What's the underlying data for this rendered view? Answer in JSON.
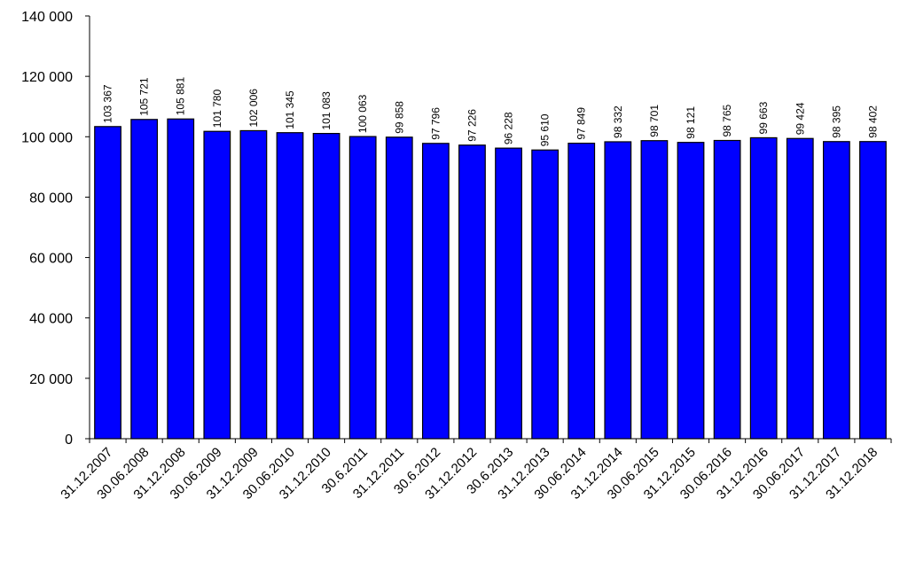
{
  "chart_data": {
    "type": "bar",
    "title": "",
    "xlabel": "",
    "ylabel": "",
    "ylim": [
      0,
      140000
    ],
    "yticks": [
      0,
      20000,
      40000,
      60000,
      80000,
      100000,
      120000,
      140000
    ],
    "ytick_labels": [
      "0",
      "20 000",
      "40 000",
      "60 000",
      "80 000",
      "100 000",
      "120 000",
      "140 000"
    ],
    "grid": false,
    "legend": "none",
    "bar_color": "#0000FF",
    "categories": [
      "31.12.2007",
      "30.06.2008",
      "31.12.2008",
      "30.06.2009",
      "31.12.2009",
      "30.06.2010",
      "31.12.2010",
      "30.6.2011",
      "31.12.2011",
      "30.6.2012",
      "31.12.2012",
      "30.6.2013",
      "31.12.2013",
      "30.06.2014",
      "31.12.2014",
      "30.06.2015",
      "31.12.2015",
      "30.06.2016",
      "31.12.2016",
      "30.06.2017",
      "31.12.2017",
      "31.12.2018"
    ],
    "values": [
      103367,
      105721,
      105881,
      101780,
      102006,
      101345,
      101083,
      100063,
      99858,
      97796,
      97226,
      96228,
      95610,
      97849,
      98332,
      98701,
      98121,
      98765,
      99663,
      99424,
      98395,
      98402
    ],
    "value_labels": [
      "103 367",
      "105 721",
      "105 881",
      "101 780",
      "102 006",
      "101 345",
      "101 083",
      "100 063",
      "99 858",
      "97 796",
      "97 226",
      "96 228",
      "95 610",
      "97 849",
      "98 332",
      "98 701",
      "98 121",
      "98 765",
      "99 663",
      "99 424",
      "98 395",
      "98 402"
    ]
  }
}
